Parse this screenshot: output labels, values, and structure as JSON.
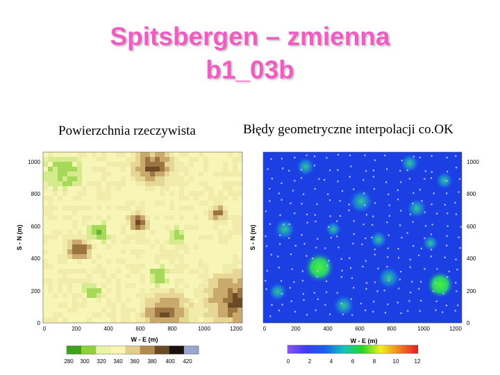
{
  "title": {
    "line1": "Spitsbergen – zmienna",
    "line2": "b1_03b"
  },
  "left_panel": {
    "subtitle": "Powierzchnia rzeczywista",
    "xlabel": "W - E (m)",
    "ylabel": "S - N (m)",
    "xticks": [
      "0",
      "200",
      "400",
      "600",
      "800",
      "1000",
      "1200"
    ],
    "yticks": [
      "0",
      "200",
      "400",
      "600",
      "800",
      "1000"
    ],
    "colorbar_ticks": [
      "280",
      "300",
      "320",
      "340",
      "360",
      "380",
      "400",
      "420"
    ],
    "colorbar_colors": [
      "#3fa21a",
      "#8ed13a",
      "#e9f4a6",
      "#fbf5b4",
      "#e2cf8a",
      "#b18a4e",
      "#6a4a24",
      "#1a120a",
      "#9aa6cc"
    ]
  },
  "right_panel": {
    "subtitle": "Błędy geometryczne interpolacji co.OK",
    "xlabel": "W - E (m)",
    "ylabel": "S - N (m)",
    "xticks": [
      "0",
      "200",
      "400",
      "600",
      "800",
      "1000",
      "1200"
    ],
    "yticks": [
      "0",
      "200",
      "400",
      "600",
      "800",
      "1000"
    ],
    "colorbar_ticks": [
      "0",
      "2",
      "4",
      "6",
      "8",
      "10",
      "12"
    ],
    "colorbar_colors": [
      "#8a55f0",
      "#3c3cf0",
      "#1a60e8",
      "#16c0c0",
      "#28d428",
      "#f0f020",
      "#f08020",
      "#e02020"
    ]
  }
}
